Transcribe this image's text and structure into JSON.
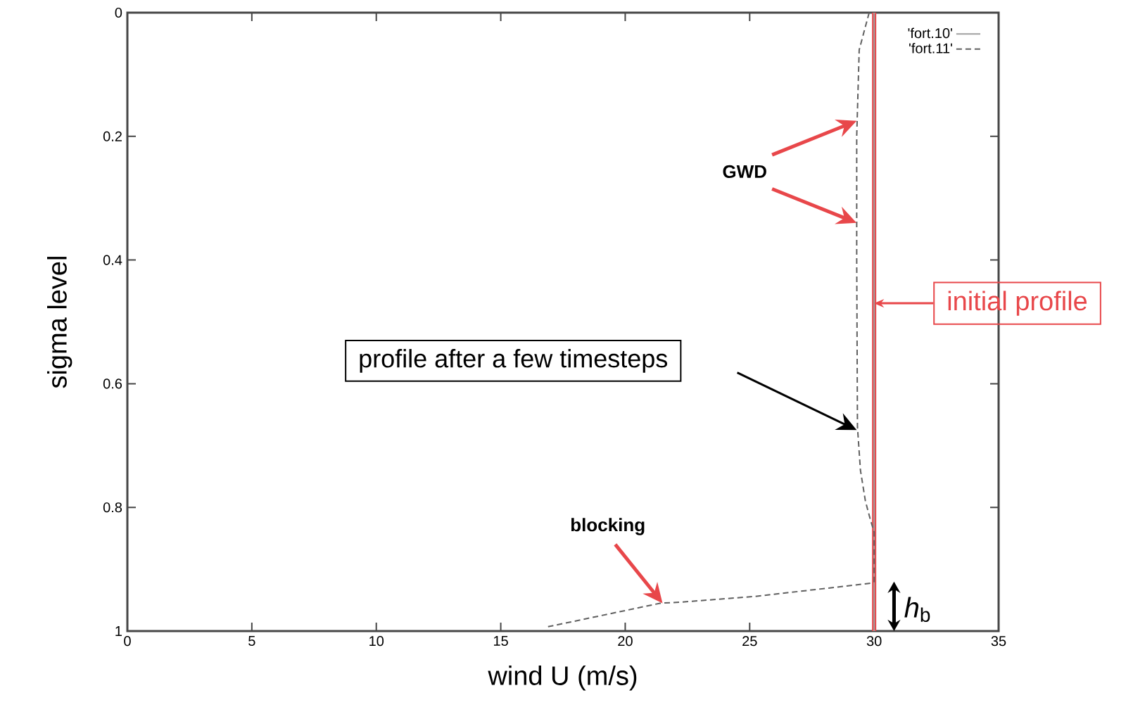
{
  "chart_data": {
    "type": "line",
    "xlabel": "wind U (m/s)",
    "ylabel": "sigma level",
    "xlim": [
      0,
      35
    ],
    "xticks": [
      0,
      5,
      10,
      15,
      20,
      25,
      30,
      35
    ],
    "ylim": [
      1,
      0
    ],
    "yticks": [
      0,
      0.2,
      0.4,
      0.6,
      0.8,
      1
    ],
    "legend": "top right",
    "series": [
      {
        "name": "'fort.10'",
        "color": "#a0a0a0",
        "line_style": "solid",
        "x": [
          30,
          30
        ],
        "values": [
          0,
          1
        ]
      },
      {
        "name": "'fort.11'",
        "color": "#606060",
        "line_style": "dashed",
        "x": [
          29.8,
          29.4,
          29.3,
          29.3,
          29.33,
          29.45,
          29.65,
          29.85,
          30,
          30,
          29.8,
          25.2,
          22.3,
          21.4,
          16.9
        ],
        "values": [
          0,
          0.06,
          0.2,
          0.4,
          0.67,
          0.74,
          0.79,
          0.82,
          0.84,
          0.92,
          0.923,
          0.944,
          0.953,
          0.955,
          0.993
        ]
      }
    ],
    "ref_lines": [
      {
        "axis": "x",
        "value": 30,
        "label": "initial profile",
        "color": "#e8474a"
      }
    ],
    "annotations": [
      "**GWD**",
      "profile after a few timesteps",
      "**blocking**",
      "*h*$_{b}$"
    ]
  }
}
